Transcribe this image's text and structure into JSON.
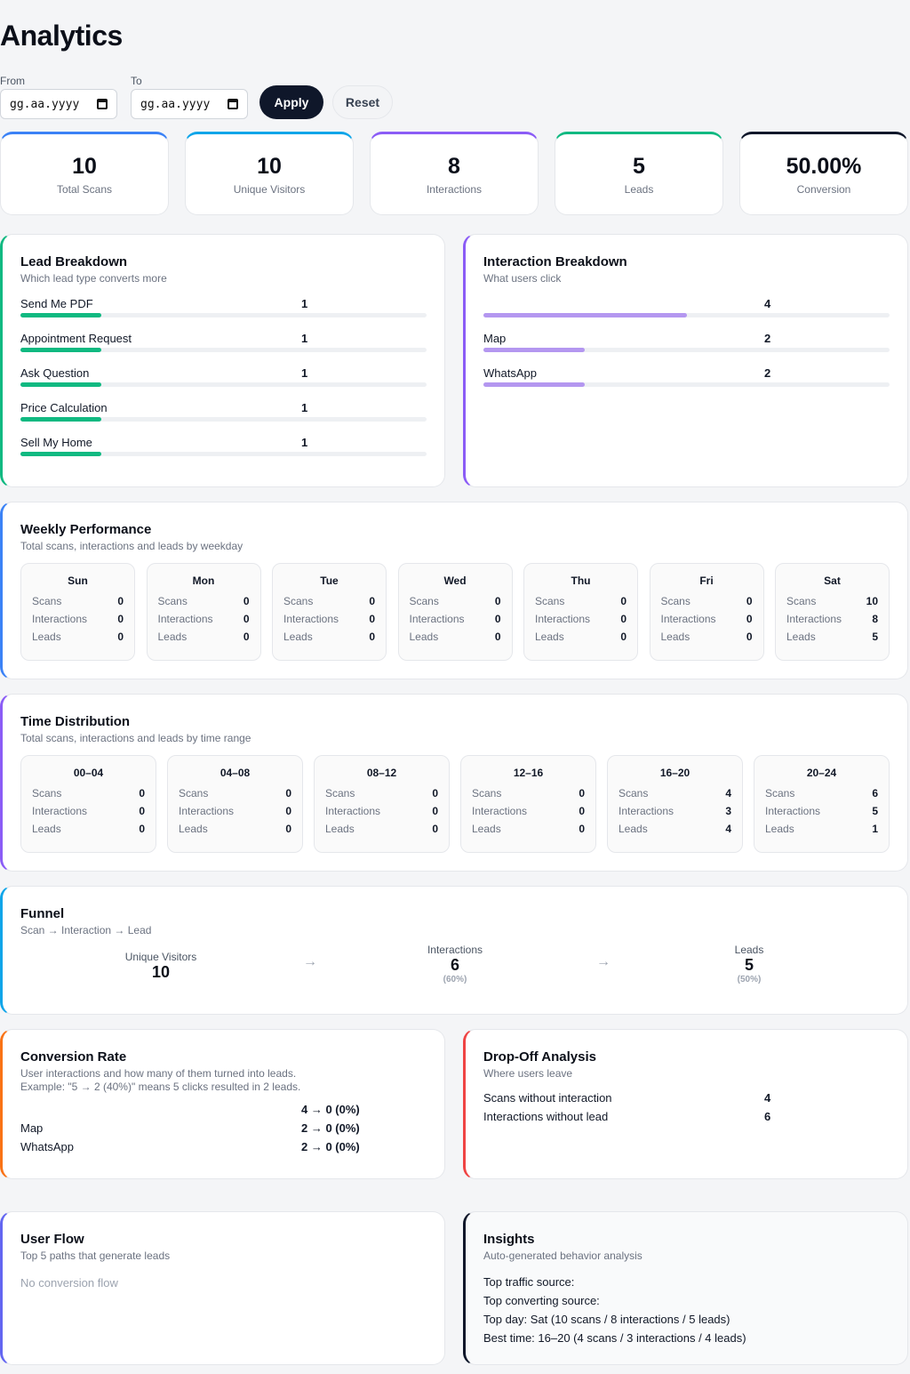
{
  "title": "Analytics",
  "filters": {
    "from_label": "From",
    "to_label": "To",
    "from_placeholder": "gg.aa.yyyy",
    "to_placeholder": "gg.aa.yyyy",
    "apply_label": "Apply",
    "reset_label": "Reset"
  },
  "kpis": [
    {
      "value": "10",
      "label": "Total Scans",
      "color": "#3b82f6"
    },
    {
      "value": "10",
      "label": "Unique Visitors",
      "color": "#0ea5e9"
    },
    {
      "value": "8",
      "label": "Interactions",
      "color": "#8b5cf6"
    },
    {
      "value": "5",
      "label": "Leads",
      "color": "#10b981"
    },
    {
      "value": "50.00%",
      "label": "Conversion",
      "color": "#0f172a"
    }
  ],
  "lead_breakdown": {
    "title": "Lead Breakdown",
    "subtitle": "Which lead type converts more",
    "accent": "#10b981",
    "items": [
      {
        "label": "Send Me PDF",
        "count": "1",
        "fraction": 0.2
      },
      {
        "label": "Appointment Request",
        "count": "1",
        "fraction": 0.2
      },
      {
        "label": "Ask Question",
        "count": "1",
        "fraction": 0.2
      },
      {
        "label": "Price Calculation",
        "count": "1",
        "fraction": 0.2
      },
      {
        "label": "Sell My Home",
        "count": "1",
        "fraction": 0.2
      }
    ]
  },
  "interaction_breakdown": {
    "title": "Interaction Breakdown",
    "subtitle": "What users click",
    "accent": "#8b5cf6",
    "items": [
      {
        "label": "",
        "count": "4",
        "fraction": 0.5
      },
      {
        "label": "Map",
        "count": "2",
        "fraction": 0.25
      },
      {
        "label": "WhatsApp",
        "count": "2",
        "fraction": 0.25
      }
    ]
  },
  "weekly": {
    "title": "Weekly Performance",
    "subtitle": "Total scans, interactions and leads by weekday",
    "accent": "#3b82f6",
    "keys": {
      "scans": "Scans",
      "interactions": "Interactions",
      "leads": "Leads"
    },
    "days": [
      {
        "name": "Sun",
        "scans": "0",
        "interactions": "0",
        "leads": "0"
      },
      {
        "name": "Mon",
        "scans": "0",
        "interactions": "0",
        "leads": "0"
      },
      {
        "name": "Tue",
        "scans": "0",
        "interactions": "0",
        "leads": "0"
      },
      {
        "name": "Wed",
        "scans": "0",
        "interactions": "0",
        "leads": "0"
      },
      {
        "name": "Thu",
        "scans": "0",
        "interactions": "0",
        "leads": "0"
      },
      {
        "name": "Fri",
        "scans": "0",
        "interactions": "0",
        "leads": "0"
      },
      {
        "name": "Sat",
        "scans": "10",
        "interactions": "8",
        "leads": "5"
      }
    ]
  },
  "time_distribution": {
    "title": "Time Distribution",
    "subtitle": "Total scans, interactions and leads by time range",
    "accent": "#8b5cf6",
    "ranges": [
      {
        "name": "00–04",
        "scans": "0",
        "interactions": "0",
        "leads": "0"
      },
      {
        "name": "04–08",
        "scans": "0",
        "interactions": "0",
        "leads": "0"
      },
      {
        "name": "08–12",
        "scans": "0",
        "interactions": "0",
        "leads": "0"
      },
      {
        "name": "12–16",
        "scans": "0",
        "interactions": "0",
        "leads": "0"
      },
      {
        "name": "16–20",
        "scans": "4",
        "interactions": "3",
        "leads": "4"
      },
      {
        "name": "20–24",
        "scans": "6",
        "interactions": "5",
        "leads": "1"
      }
    ]
  },
  "funnel": {
    "title": "Funnel",
    "subtitle": "Scan → Interaction → Lead",
    "accent": "#0ea5e9",
    "arrow": "→",
    "steps": [
      {
        "label": "Unique Visitors",
        "value": "10",
        "pct": ""
      },
      {
        "label": "Interactions",
        "value": "6",
        "pct": "(60%)"
      },
      {
        "label": "Leads",
        "value": "5",
        "pct": "(50%)"
      }
    ]
  },
  "conversion_rate": {
    "title": "Conversion Rate",
    "subtitle": "User interactions and how many of them turned into leads.",
    "subtitle2": "Example: \"5 → 2 (40%)\" means 5 clicks resulted in 2 leads.",
    "accent": "#f97316",
    "rows": [
      {
        "label": "",
        "value": "4 → 0 (0%)"
      },
      {
        "label": "Map",
        "value": "2 → 0 (0%)"
      },
      {
        "label": "WhatsApp",
        "value": "2 → 0 (0%)"
      }
    ]
  },
  "drop_off": {
    "title": "Drop-Off Analysis",
    "subtitle": "Where users leave",
    "accent": "#ef4444",
    "rows": [
      {
        "label": "Scans without interaction",
        "value": "4"
      },
      {
        "label": "Interactions without lead",
        "value": "6"
      }
    ]
  },
  "user_flow": {
    "title": "User Flow",
    "subtitle": "Top 5 paths that generate leads",
    "accent": "#6366f1",
    "empty": "No conversion flow"
  },
  "insights": {
    "title": "Insights",
    "subtitle": "Auto-generated behavior analysis",
    "accent": "#0f172a",
    "lines": [
      "Top traffic source:",
      "Top converting source:",
      "Top day: Sat (10 scans / 8 interactions / 5 leads)",
      "Best time: 16–20 (4 scans / 3 interactions / 4 leads)"
    ]
  }
}
